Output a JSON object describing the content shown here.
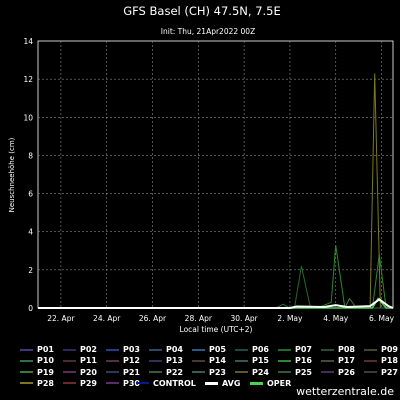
{
  "chart_data": {
    "type": "line",
    "title": "GFS Basel (CH) 47.5N, 7.5E",
    "subtitle": "Init: Thu, 21Apr2022 00Z",
    "xlabel": "Local time (UTC+2)",
    "ylabel": "Neuschneehöhe (cm)",
    "ylim": [
      0,
      14
    ],
    "yticks": [
      0,
      2,
      4,
      6,
      8,
      10,
      12,
      14
    ],
    "xlim": [
      21.0,
      36.5
    ],
    "xticks": [
      {
        "label": "22. Apr",
        "x": 22
      },
      {
        "label": "24. Apr",
        "x": 24
      },
      {
        "label": "26. Apr",
        "x": 26
      },
      {
        "label": "28. Apr",
        "x": 28
      },
      {
        "label": "30. Apr",
        "x": 30
      },
      {
        "label": "2. May",
        "x": 32
      },
      {
        "label": "4. May",
        "x": 34
      },
      {
        "label": "6. May",
        "x": 36
      }
    ],
    "grid": true,
    "series": [
      {
        "name": "P07",
        "color": "#1f6b2a",
        "x": [
          31.5,
          32.2,
          32.5,
          32.9,
          35.2,
          36.5
        ],
        "values": [
          0,
          0,
          2.2,
          0,
          0,
          0
        ]
      },
      {
        "name": "P16",
        "color": "#2a8a2a",
        "x": [
          33.2,
          33.8,
          34.0,
          34.4,
          35.6,
          35.9,
          36.2,
          36.5
        ],
        "values": [
          0,
          0.3,
          3.3,
          0,
          0,
          2.8,
          0,
          0
        ]
      },
      {
        "name": "P28",
        "color": "#7a7a1a",
        "x": [
          35.0,
          35.5,
          35.7,
          35.95,
          36.5
        ],
        "values": [
          0,
          0,
          12.3,
          0,
          0
        ]
      },
      {
        "name": "P19",
        "color": "#3c7a3c",
        "x": [
          34.0,
          34.4,
          34.6,
          34.9,
          36.5
        ],
        "values": [
          0,
          0,
          0.5,
          0,
          0
        ]
      },
      {
        "name": "P10",
        "color": "#2e6e46",
        "x": [
          31.4,
          31.7,
          32.0,
          36.5
        ],
        "values": [
          0,
          0.2,
          0,
          0
        ]
      },
      {
        "name": "OPER",
        "color": "#4cd24c",
        "x": [
          21.0,
          35.6,
          35.85,
          36.2,
          36.5
        ],
        "values": [
          0,
          0,
          0.5,
          0,
          0
        ]
      },
      {
        "name": "AVG",
        "color": "#ffffff",
        "x": [
          21.0,
          32.0,
          32.3,
          33.5,
          34.0,
          34.5,
          35.5,
          35.9,
          36.3,
          36.5
        ],
        "values": [
          0,
          0,
          0.08,
          0.05,
          0.15,
          0.05,
          0.1,
          0.45,
          0.1,
          0
        ]
      }
    ]
  },
  "legend": [
    {
      "label": "P01",
      "color": "#3a3a7a"
    },
    {
      "label": "P02",
      "color": "#2a2a5a"
    },
    {
      "label": "P03",
      "color": "#2a3a8a"
    },
    {
      "label": "P04",
      "color": "#2a4a6a"
    },
    {
      "label": "P05",
      "color": "#2a5a8a"
    },
    {
      "label": "P06",
      "color": "#1a4a4a"
    },
    {
      "label": "P07",
      "color": "#1f6b2a"
    },
    {
      "label": "P08",
      "color": "#2a4a3a"
    },
    {
      "label": "P09",
      "color": "#3a4a2a"
    },
    {
      "label": "P10",
      "color": "#2e6e46"
    },
    {
      "label": "P11",
      "color": "#4a2a2a"
    },
    {
      "label": "P12",
      "color": "#5a2a4a"
    },
    {
      "label": "P13",
      "color": "#3a2a5a"
    },
    {
      "label": "P14",
      "color": "#4a3a2a"
    },
    {
      "label": "P15",
      "color": "#2a5a5a"
    },
    {
      "label": "P16",
      "color": "#2a8a2a"
    },
    {
      "label": "P17",
      "color": "#4a4a2a"
    },
    {
      "label": "P18",
      "color": "#5a2a2a"
    },
    {
      "label": "P19",
      "color": "#3c7a3c"
    },
    {
      "label": "P20",
      "color": "#5a2a5a"
    },
    {
      "label": "P21",
      "color": "#2a3a5a"
    },
    {
      "label": "P22",
      "color": "#3a5a3a"
    },
    {
      "label": "P23",
      "color": "#3a5a5a"
    },
    {
      "label": "P24",
      "color": "#5a5a2a"
    },
    {
      "label": "P25",
      "color": "#2a5a3a"
    },
    {
      "label": "P26",
      "color": "#4a2a5a"
    },
    {
      "label": "P27",
      "color": "#3a3a3a"
    },
    {
      "label": "P28",
      "color": "#7a7a1a"
    },
    {
      "label": "P29",
      "color": "#6a2a2a"
    },
    {
      "label": "P30",
      "color": "#5a2a6a"
    },
    {
      "label": "CONTROL",
      "color": "#0a1a8a"
    },
    {
      "label": "AVG",
      "color": "#ffffff"
    },
    {
      "label": "OPER",
      "color": "#4cd24c"
    }
  ],
  "watermark": "wetterzentrale.de"
}
